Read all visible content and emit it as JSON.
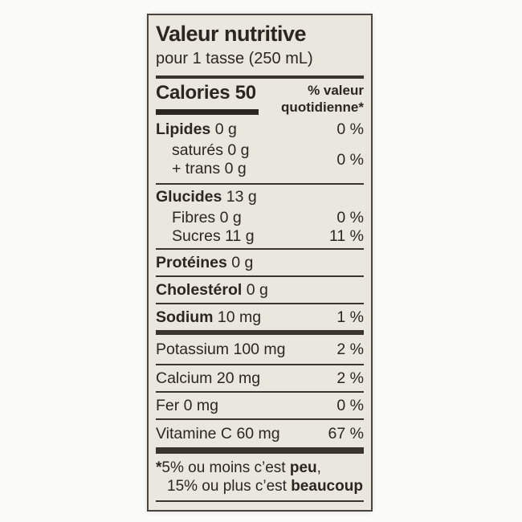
{
  "label": {
    "title": "Valeur nutritive",
    "serving": "pour 1 tasse (250 mL)",
    "calories": {
      "name": "Calories",
      "value": "50"
    },
    "dv_header_line1": "% valeur",
    "dv_header_line2": "quotidienne*",
    "rows": [
      {
        "name": "Lipides",
        "amount": "0 g",
        "dv": "0 %"
      },
      {
        "sub1_name": "saturés",
        "sub1_amount": "0 g",
        "sub2_name": "+ trans",
        "sub2_amount": "0 g",
        "dv": "0 %"
      },
      {
        "name": "Glucides",
        "amount": "13 g",
        "dv": ""
      },
      {
        "name": "Fibres",
        "amount": "0 g",
        "dv": "0 %"
      },
      {
        "name": "Sucres",
        "amount": "11 g",
        "dv": "11 %"
      },
      {
        "name": "Protéines",
        "amount": "0 g",
        "dv": ""
      },
      {
        "name": "Cholestérol",
        "amount": "0 g",
        "dv": ""
      },
      {
        "name": "Sodium",
        "amount": "10 mg",
        "dv": "1 %"
      },
      {
        "name": "Potassium",
        "amount": "100 mg",
        "dv": "2 %"
      },
      {
        "name": "Calcium",
        "amount": "20 mg",
        "dv": "2 %"
      },
      {
        "name": "Fer",
        "amount": "0 mg",
        "dv": "0 %"
      },
      {
        "name": "Vitamine C",
        "amount": "60 mg",
        "dv": "67 %"
      }
    ],
    "footnote": {
      "star": "*",
      "line1_text": "5% ou moins c’est",
      "line1_bold": "peu",
      "line1_comma": ",",
      "line2_text": "15% ou plus c’est",
      "line2_bold": "beaucoup"
    }
  },
  "colors": {
    "label_background": "#eae7df",
    "border": "#4a443d",
    "rule": "#39342e",
    "text": "#2b2622",
    "page_background": "#fbfbfa"
  }
}
